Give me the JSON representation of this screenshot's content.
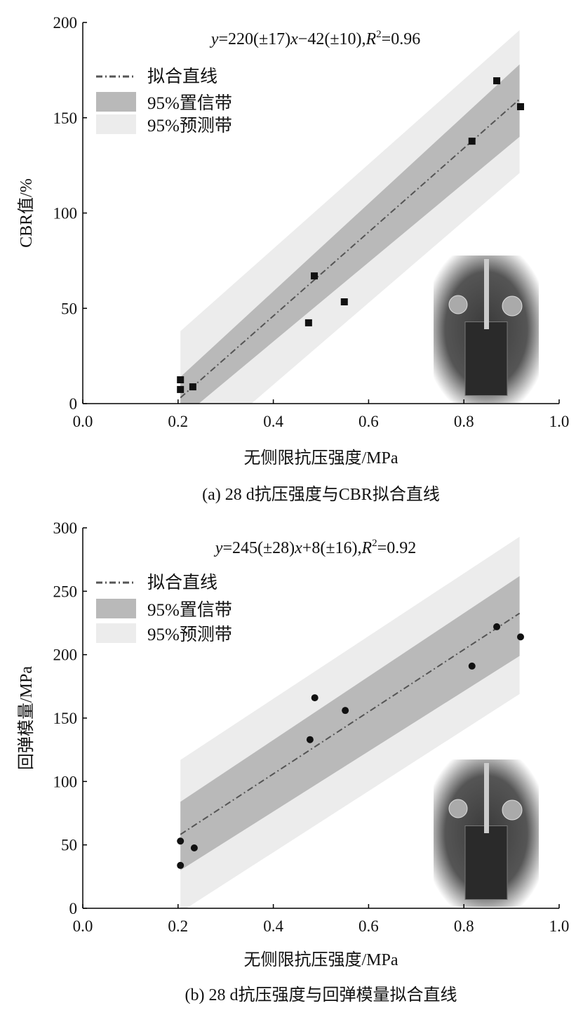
{
  "chart_data": [
    {
      "type": "scatter",
      "title": "(a) 28 d抗压强度与CBR拟合直线",
      "xlabel": "无侧限抗压强度/MPa",
      "ylabel": "CBR值/%",
      "xlim": [
        0,
        1.0
      ],
      "ylim": [
        0,
        200
      ],
      "xticks": [
        "0.0",
        "0.2",
        "0.4",
        "0.6",
        "0.8",
        "1.0"
      ],
      "xtick_values": [
        0,
        0.2,
        0.4,
        0.6,
        0.8,
        1.0
      ],
      "yticks": [
        "0",
        "50",
        "100",
        "150",
        "200"
      ],
      "ytick_values": [
        0,
        50,
        100,
        150,
        200
      ],
      "grid": false,
      "marker": "square",
      "equation": {
        "lhs": "y",
        "mid": "=220(±17)",
        "x": "x",
        "rest": "−42(±10),",
        "r": "R",
        "sup": "2",
        "tail": "=0.96"
      },
      "legend": {
        "placement": "top-left",
        "items": [
          "拟合直线",
          "95%置信带",
          "95%预测带"
        ]
      },
      "fit": {
        "slope": 220,
        "intercept": -42,
        "x_range": [
          0.205,
          0.917
        ]
      },
      "confidence_band": {
        "x": [
          0.205,
          0.917
        ],
        "upper": [
          14,
          178
        ],
        "lower": [
          -8,
          140
        ]
      },
      "prediction_band": {
        "x": [
          0.205,
          0.917
        ],
        "upper": [
          38,
          196
        ],
        "lower": [
          -32,
          121
        ]
      },
      "points": [
        [
          0.205,
          12.5
        ],
        [
          0.205,
          7.4
        ],
        [
          0.231,
          8.8
        ],
        [
          0.474,
          42.4
        ],
        [
          0.486,
          67
        ],
        [
          0.549,
          53.4
        ],
        [
          0.817,
          137.7
        ],
        [
          0.869,
          169.4
        ],
        [
          0.919,
          155.8
        ]
      ],
      "colors": {
        "confidence": "#b9b9b9",
        "prediction": "#ececec",
        "fit": "#555555",
        "points": "#111111"
      }
    },
    {
      "type": "scatter",
      "title": "(b) 28 d抗压强度与回弹模量拟合直线",
      "xlabel": "无侧限抗压强度/MPa",
      "ylabel": "回弹模量/MPa",
      "xlim": [
        0,
        1.0
      ],
      "ylim": [
        0,
        300
      ],
      "xticks": [
        "0.0",
        "0.2",
        "0.4",
        "0.6",
        "0.8",
        "1.0"
      ],
      "xtick_values": [
        0,
        0.2,
        0.4,
        0.6,
        0.8,
        1.0
      ],
      "yticks": [
        "0",
        "50",
        "100",
        "150",
        "200",
        "250",
        "300"
      ],
      "ytick_values": [
        0,
        50,
        100,
        150,
        200,
        250,
        300
      ],
      "grid": false,
      "marker": "circle",
      "equation": {
        "lhs": "y",
        "mid": "=245(±28)",
        "x": "x",
        "rest": "+8(±16),",
        "r": "R",
        "sup": "2",
        "tail": "=0.92"
      },
      "legend": {
        "placement": "top-left",
        "items": [
          "拟合直线",
          "95%置信带",
          "95%预测带"
        ]
      },
      "fit": {
        "slope": 245,
        "intercept": 8,
        "x_range": [
          0.205,
          0.917
        ]
      },
      "confidence_band": {
        "x": [
          0.205,
          0.917
        ],
        "upper": [
          84,
          262
        ],
        "lower": [
          30,
          199
        ]
      },
      "prediction_band": {
        "x": [
          0.205,
          0.917
        ],
        "upper": [
          117,
          293
        ],
        "lower": [
          -3,
          169
        ]
      },
      "points": [
        [
          0.205,
          53
        ],
        [
          0.205,
          33.8
        ],
        [
          0.234,
          47.6
        ],
        [
          0.477,
          133
        ],
        [
          0.487,
          166
        ],
        [
          0.551,
          156
        ],
        [
          0.817,
          191
        ],
        [
          0.869,
          222
        ],
        [
          0.919,
          214
        ]
      ],
      "colors": {
        "confidence": "#b9b9b9",
        "prediction": "#ececec",
        "fit": "#555555",
        "points": "#111111"
      }
    }
  ]
}
